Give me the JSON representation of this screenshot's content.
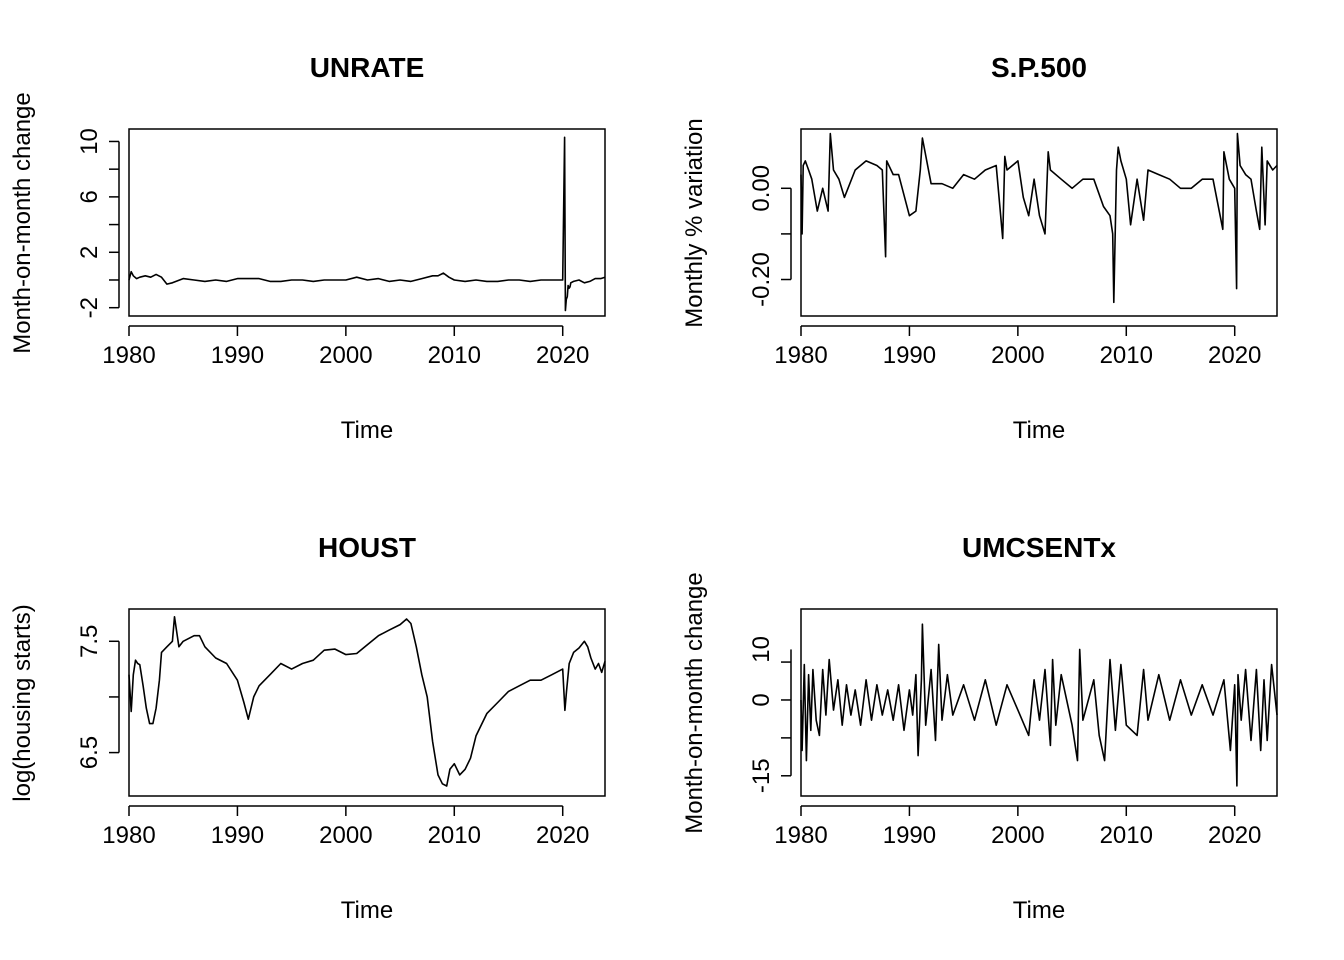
{
  "chart_data": [
    {
      "type": "line",
      "title": "UNRATE",
      "xlabel": "Time",
      "ylabel": "Month-on-month change",
      "xlim": [
        1980,
        2023.9
      ],
      "ylim": [
        -2.6,
        10.9
      ],
      "xticks": [
        1980,
        1990,
        2000,
        2010,
        2020
      ],
      "xtick_labels": [
        "1980",
        "1990",
        "2000",
        "2010",
        "2020"
      ],
      "yticks": [
        -2,
        2,
        6,
        10
      ],
      "ytick_labels": [
        "-2",
        "2",
        "6",
        "10"
      ],
      "grid": false,
      "series": [
        {
          "x": [
            1980.0,
            1980.2,
            1980.4,
            1980.7,
            1981.0,
            1981.5,
            1982.0,
            1982.5,
            1983.0,
            1983.5,
            1984,
            1985,
            1986,
            1987,
            1988,
            1989,
            1990,
            1991,
            1992,
            1993,
            1994,
            1995,
            1996,
            1997,
            1998,
            1999,
            2000,
            2001,
            2002,
            2003,
            2004,
            2005,
            2006,
            2007,
            2008,
            2008.5,
            2009.0,
            2009.5,
            2010,
            2011,
            2012,
            2013,
            2014,
            2015,
            2016,
            2017,
            2018,
            2019,
            2020.0,
            2020.17,
            2020.25,
            2020.33,
            2020.42,
            2020.5,
            2020.58,
            2020.67,
            2020.75,
            2021,
            2021.5,
            2022,
            2022.5,
            2023,
            2023.5,
            2023.9
          ],
          "values": [
            0.0,
            0.6,
            0.3,
            0.1,
            0.2,
            0.3,
            0.2,
            0.4,
            0.2,
            -0.3,
            -0.2,
            0.1,
            0.0,
            -0.1,
            0.0,
            -0.1,
            0.1,
            0.1,
            0.1,
            -0.1,
            -0.1,
            0.0,
            0.0,
            -0.1,
            0.0,
            0.0,
            0.0,
            0.2,
            0.0,
            0.1,
            -0.1,
            0.0,
            -0.1,
            0.1,
            0.3,
            0.3,
            0.5,
            0.2,
            0.0,
            -0.1,
            0.0,
            -0.1,
            -0.1,
            0.0,
            0.0,
            -0.1,
            0.0,
            0.0,
            0.0,
            10.3,
            -2.2,
            -1.4,
            -1.2,
            -0.4,
            -0.6,
            -0.5,
            -0.2,
            -0.1,
            0.0,
            -0.2,
            -0.1,
            0.1,
            0.1,
            0.2
          ]
        }
      ]
    },
    {
      "type": "line",
      "title": "S.P.500",
      "xlabel": "Time",
      "ylabel": "Monthly % variation",
      "xlim": [
        1980,
        2023.9
      ],
      "ylim": [
        -0.28,
        0.13
      ],
      "xticks": [
        1980,
        1990,
        2000,
        2010,
        2020
      ],
      "xtick_labels": [
        "1980",
        "1990",
        "2000",
        "2010",
        "2020"
      ],
      "yticks": [
        -0.2,
        0.0
      ],
      "ytick_labels": [
        "-0.20",
        "0.00"
      ],
      "grid": false,
      "series": [
        {
          "x": [
            1980.0,
            1980.1,
            1980.2,
            1980.4,
            1980.7,
            1981.0,
            1981.5,
            1982.0,
            1982.5,
            1982.7,
            1983.0,
            1983.5,
            1984,
            1985,
            1986,
            1987.0,
            1987.5,
            1987.8,
            1987.9,
            1988.5,
            1989,
            1990.0,
            1990.6,
            1991.0,
            1991.2,
            1992,
            1993,
            1994,
            1995,
            1996,
            1997,
            1998.0,
            1998.6,
            1998.8,
            1999,
            2000,
            2000.5,
            2001,
            2001.5,
            2002,
            2002.5,
            2002.8,
            2003,
            2004,
            2005,
            2006,
            2007,
            2007.9,
            2008.5,
            2008.75,
            2008.85,
            2009.1,
            2009.25,
            2009.5,
            2010,
            2010.4,
            2011,
            2011.6,
            2012,
            2013,
            2014,
            2015,
            2016,
            2017,
            2018,
            2018.9,
            2019.0,
            2019.5,
            2020.0,
            2020.17,
            2020.25,
            2020.5,
            2021,
            2021.5,
            2022,
            2022.3,
            2022.5,
            2022.8,
            2023,
            2023.5,
            2023.9
          ],
          "values": [
            0.03,
            -0.1,
            0.05,
            0.06,
            0.04,
            0.02,
            -0.05,
            0.0,
            -0.05,
            0.12,
            0.04,
            0.02,
            -0.02,
            0.04,
            0.06,
            0.05,
            0.04,
            -0.15,
            0.06,
            0.03,
            0.03,
            -0.06,
            -0.05,
            0.04,
            0.11,
            0.01,
            0.01,
            0.0,
            0.03,
            0.02,
            0.04,
            0.05,
            -0.11,
            0.07,
            0.04,
            0.06,
            -0.02,
            -0.06,
            0.02,
            -0.06,
            -0.1,
            0.08,
            0.04,
            0.02,
            0.0,
            0.02,
            0.02,
            -0.04,
            -0.06,
            -0.1,
            -0.25,
            0.04,
            0.09,
            0.06,
            0.02,
            -0.08,
            0.02,
            -0.07,
            0.04,
            0.03,
            0.02,
            0.0,
            0.0,
            0.02,
            0.02,
            -0.09,
            0.08,
            0.02,
            0.0,
            -0.22,
            0.12,
            0.05,
            0.03,
            0.02,
            -0.05,
            -0.09,
            0.09,
            -0.08,
            0.06,
            0.04,
            0.05
          ]
        }
      ]
    },
    {
      "type": "line",
      "title": "HOUST",
      "xlabel": "Time",
      "ylabel": "log(housing starts)",
      "xlim": [
        1980,
        2023.9
      ],
      "ylim": [
        6.11,
        7.79
      ],
      "xticks": [
        1980,
        1990,
        2000,
        2010,
        2020
      ],
      "xtick_labels": [
        "1980",
        "1990",
        "2000",
        "2010",
        "2020"
      ],
      "yticks": [
        6.5,
        7.5
      ],
      "ytick_labels": [
        "6.5",
        "7.5"
      ],
      "grid": false,
      "series": [
        {
          "x": [
            1980.0,
            1980.2,
            1980.4,
            1980.6,
            1980.8,
            1981.0,
            1981.3,
            1981.6,
            1981.9,
            1982.2,
            1982.5,
            1982.8,
            1983.0,
            1983.5,
            1984.0,
            1984.2,
            1984.6,
            1985,
            1986,
            1986.5,
            1987,
            1988,
            1989,
            1990.0,
            1990.6,
            1991.0,
            1991.5,
            1992,
            1993,
            1994,
            1995,
            1996,
            1997,
            1998,
            1999,
            2000,
            2001,
            2002,
            2003,
            2004,
            2005,
            2005.6,
            2006.0,
            2006.5,
            2007.0,
            2007.5,
            2008.0,
            2008.5,
            2008.9,
            2009.3,
            2009.6,
            2010,
            2010.5,
            2011,
            2011.5,
            2012,
            2013,
            2014,
            2015,
            2016,
            2017,
            2018,
            2019,
            2020.0,
            2020.2,
            2020.35,
            2020.6,
            2021,
            2021.5,
            2022,
            2022.3,
            2022.6,
            2023,
            2023.3,
            2023.6,
            2023.9
          ],
          "values": [
            7.2,
            6.87,
            7.2,
            7.33,
            7.3,
            7.29,
            7.1,
            6.9,
            6.76,
            6.76,
            6.9,
            7.15,
            7.4,
            7.45,
            7.5,
            7.72,
            7.45,
            7.5,
            7.55,
            7.55,
            7.45,
            7.35,
            7.3,
            7.15,
            6.95,
            6.8,
            7.0,
            7.1,
            7.2,
            7.3,
            7.25,
            7.3,
            7.33,
            7.42,
            7.43,
            7.38,
            7.39,
            7.47,
            7.55,
            7.6,
            7.65,
            7.7,
            7.66,
            7.45,
            7.2,
            7.0,
            6.6,
            6.3,
            6.22,
            6.2,
            6.35,
            6.4,
            6.3,
            6.35,
            6.45,
            6.65,
            6.85,
            6.95,
            7.05,
            7.1,
            7.15,
            7.15,
            7.2,
            7.25,
            6.88,
            7.05,
            7.3,
            7.4,
            7.44,
            7.5,
            7.45,
            7.35,
            7.25,
            7.3,
            7.22,
            7.32
          ]
        }
      ]
    },
    {
      "type": "line",
      "title": "UMCSENTx",
      "xlabel": "Time",
      "ylabel": "Month-on-month change",
      "xlim": [
        1980,
        2023.9
      ],
      "ylim": [
        -19,
        18
      ],
      "xticks": [
        1980,
        1990,
        2000,
        2010,
        2020
      ],
      "xtick_labels": [
        "1980",
        "1990",
        "2000",
        "2010",
        "2020"
      ],
      "yticks": [
        -15,
        0,
        10
      ],
      "ytick_labels": [
        "-15",
        "0",
        "10"
      ],
      "grid": false,
      "series": [
        {
          "x": [
            1980.0,
            1980.1,
            1980.3,
            1980.5,
            1980.7,
            1980.9,
            1981.1,
            1981.4,
            1981.7,
            1982.0,
            1982.3,
            1982.6,
            1983.0,
            1983.4,
            1983.8,
            1984.2,
            1984.6,
            1985,
            1985.5,
            1986,
            1986.5,
            1987,
            1987.5,
            1988,
            1988.5,
            1989,
            1989.5,
            1990.0,
            1990.3,
            1990.6,
            1990.8,
            1991.1,
            1991.2,
            1991.5,
            1992,
            1992.4,
            1992.7,
            1993,
            1993.5,
            1994,
            1995,
            1996,
            1997,
            1998,
            1999,
            2000,
            2001,
            2001.5,
            2002,
            2002.5,
            2003,
            2003.2,
            2003.5,
            2004,
            2005,
            2005.5,
            2005.7,
            2006,
            2007,
            2007.5,
            2008,
            2008.5,
            2009,
            2009.5,
            2010,
            2011,
            2011.6,
            2012,
            2013,
            2014,
            2015,
            2016,
            2017,
            2018,
            2019,
            2019.6,
            2020.0,
            2020.2,
            2020.3,
            2020.6,
            2021,
            2021.5,
            2022,
            2022.4,
            2022.7,
            2023,
            2023.4,
            2023.9
          ],
          "values": [
            0,
            -10,
            7,
            -12,
            5,
            -6,
            6,
            -4,
            -7,
            6,
            -3,
            8,
            -2,
            4,
            -5,
            3,
            -3,
            2,
            -5,
            4,
            -4,
            3,
            -3,
            2,
            -4,
            3,
            -6,
            2,
            -3,
            5,
            -11,
            4,
            15,
            -5,
            6,
            -8,
            11,
            -4,
            5,
            -3,
            3,
            -4,
            4,
            -5,
            3,
            -2,
            -7,
            4,
            -4,
            6,
            -9,
            8,
            -5,
            5,
            -5,
            -12,
            10,
            -4,
            4,
            -7,
            -12,
            8,
            -6,
            7,
            -5,
            -7,
            6,
            -4,
            5,
            -4,
            4,
            -3,
            3,
            -3,
            4,
            -10,
            3,
            -17,
            5,
            -4,
            6,
            -8,
            6,
            -10,
            4,
            -8,
            7,
            -3
          ]
        }
      ]
    }
  ]
}
